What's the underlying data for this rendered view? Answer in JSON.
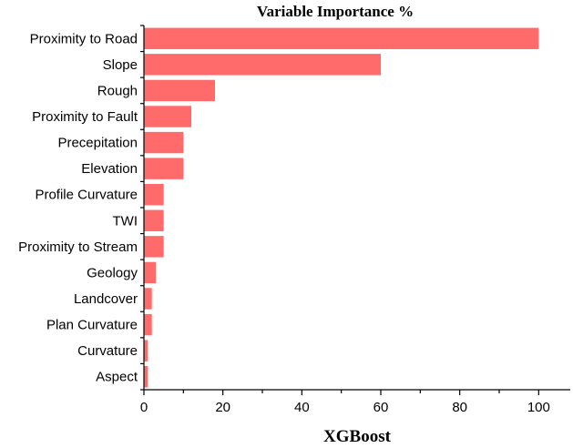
{
  "chart_data": {
    "type": "bar",
    "orientation": "horizontal",
    "title": "Variable Importance %",
    "xlabel": "XGBoost",
    "ylabel": "",
    "xlim": [
      0,
      108
    ],
    "xticks": [
      0,
      20,
      40,
      60,
      80,
      100
    ],
    "grid": false,
    "bar_color": "#ff6b6b",
    "categories": [
      "Proximity to Road",
      "Slope",
      "Rough",
      "Proximity to Fault",
      "Precepitation",
      "Elevation",
      "Profile Curvature",
      "TWI",
      "Proximity to Stream",
      "Geology",
      "Landcover",
      "Plan Curvature",
      "Curvature",
      "Aspect"
    ],
    "values": [
      100,
      60,
      18,
      12,
      10,
      10,
      5,
      5,
      5,
      3,
      2,
      2,
      1,
      1
    ]
  }
}
